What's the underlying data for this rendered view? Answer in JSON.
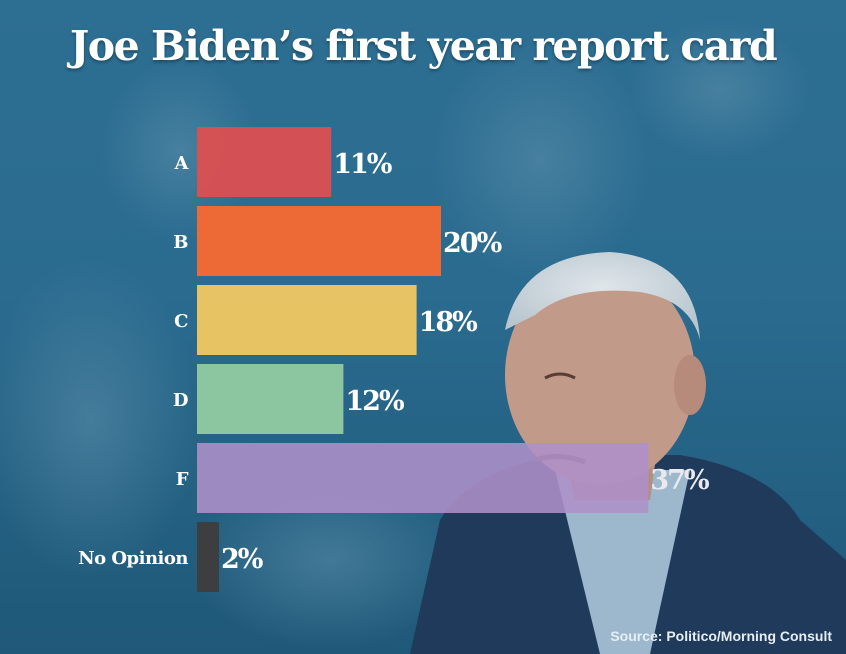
{
  "chart_data": {
    "type": "bar",
    "orientation": "horizontal",
    "title": "Joe Biden’s first year report card",
    "categories": [
      "A",
      "B",
      "C",
      "D",
      "F",
      "No Opinion"
    ],
    "values": [
      11,
      20,
      18,
      12,
      37,
      2
    ],
    "value_labels": [
      "11%",
      "20%",
      "18%",
      "12%",
      "37%",
      "2%"
    ],
    "colors": [
      "#d94f52",
      "#f46a34",
      "#eec663",
      "#8fc9a2",
      "#ad8fc8",
      "#3d3d3d"
    ],
    "xlabel": "",
    "ylabel": "",
    "xlim": [
      0,
      37
    ],
    "grid": false,
    "legend": "none"
  },
  "source": "Source: Politico/Morning Consult"
}
